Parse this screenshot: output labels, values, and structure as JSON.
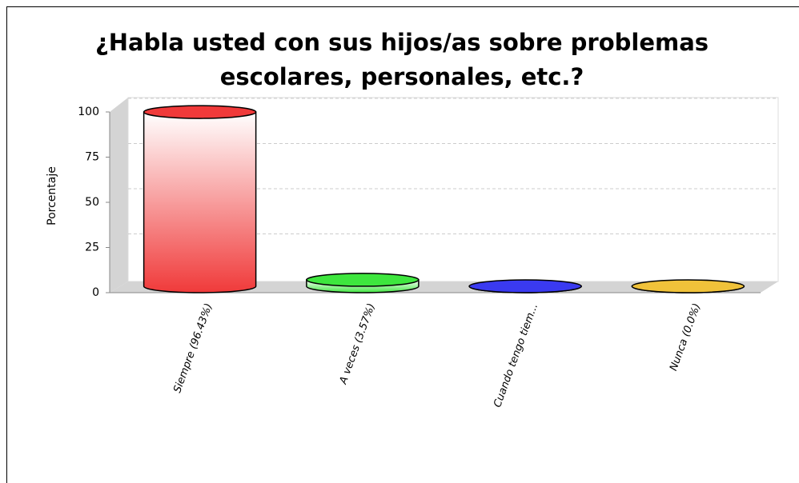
{
  "chart_data": {
    "type": "bar3d",
    "title": [
      "¿Habla usted con sus hijos/as sobre problemas",
      "escolares, personales, etc.?"
    ],
    "y_label": "Porcentaje",
    "categories": [
      "Siempre (96.43%)",
      "A veces (3.57%)",
      "Cuando tengo tiem...",
      "Nunca (0.0%)"
    ],
    "values": [
      96.43,
      3.57,
      0,
      0
    ],
    "colors": [
      "#f03a3a",
      "#3ee63e",
      "#3a3af0",
      "#f0c23a"
    ],
    "ylim": [
      0,
      100
    ],
    "yticks": [
      0,
      25,
      50,
      75,
      100
    ],
    "grid": true
  }
}
